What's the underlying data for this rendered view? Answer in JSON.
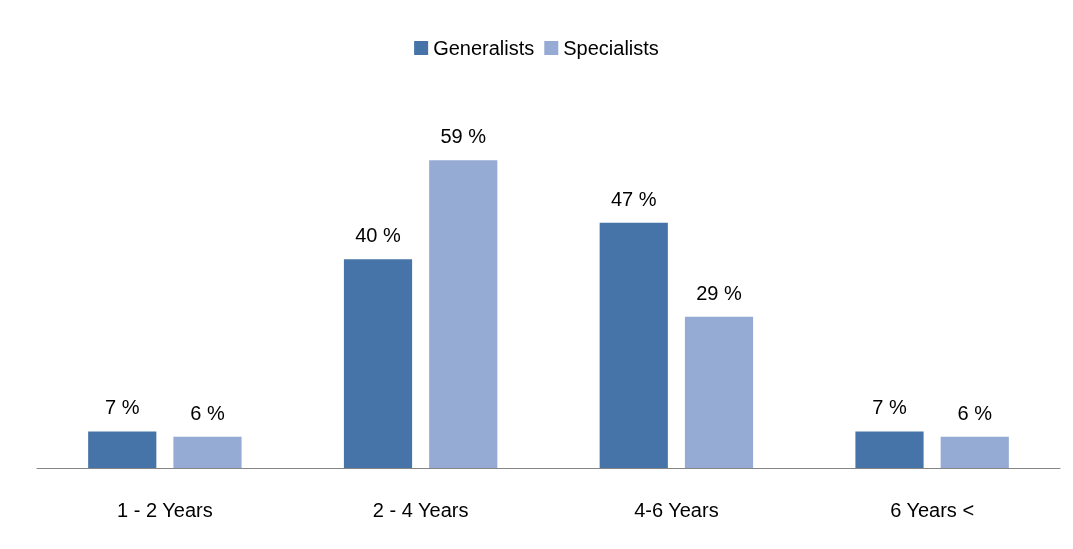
{
  "chart_data": {
    "type": "bar",
    "categories": [
      "1 - 2 Years",
      "2 - 4 Years",
      "4-6 Years",
      "6 Years <"
    ],
    "series": [
      {
        "name": "Generalists",
        "color": "#4674a9",
        "values": [
          7,
          40,
          47,
          7
        ],
        "value_labels": [
          "7 %",
          "40 %",
          "47 %",
          "7 %"
        ]
      },
      {
        "name": "Specialists",
        "color": "#95abd3",
        "values": [
          6,
          59,
          29,
          6
        ],
        "value_labels": [
          "6 %",
          "59 %",
          "29 %",
          "6 %"
        ]
      }
    ],
    "legend": "top",
    "grid": false
  }
}
